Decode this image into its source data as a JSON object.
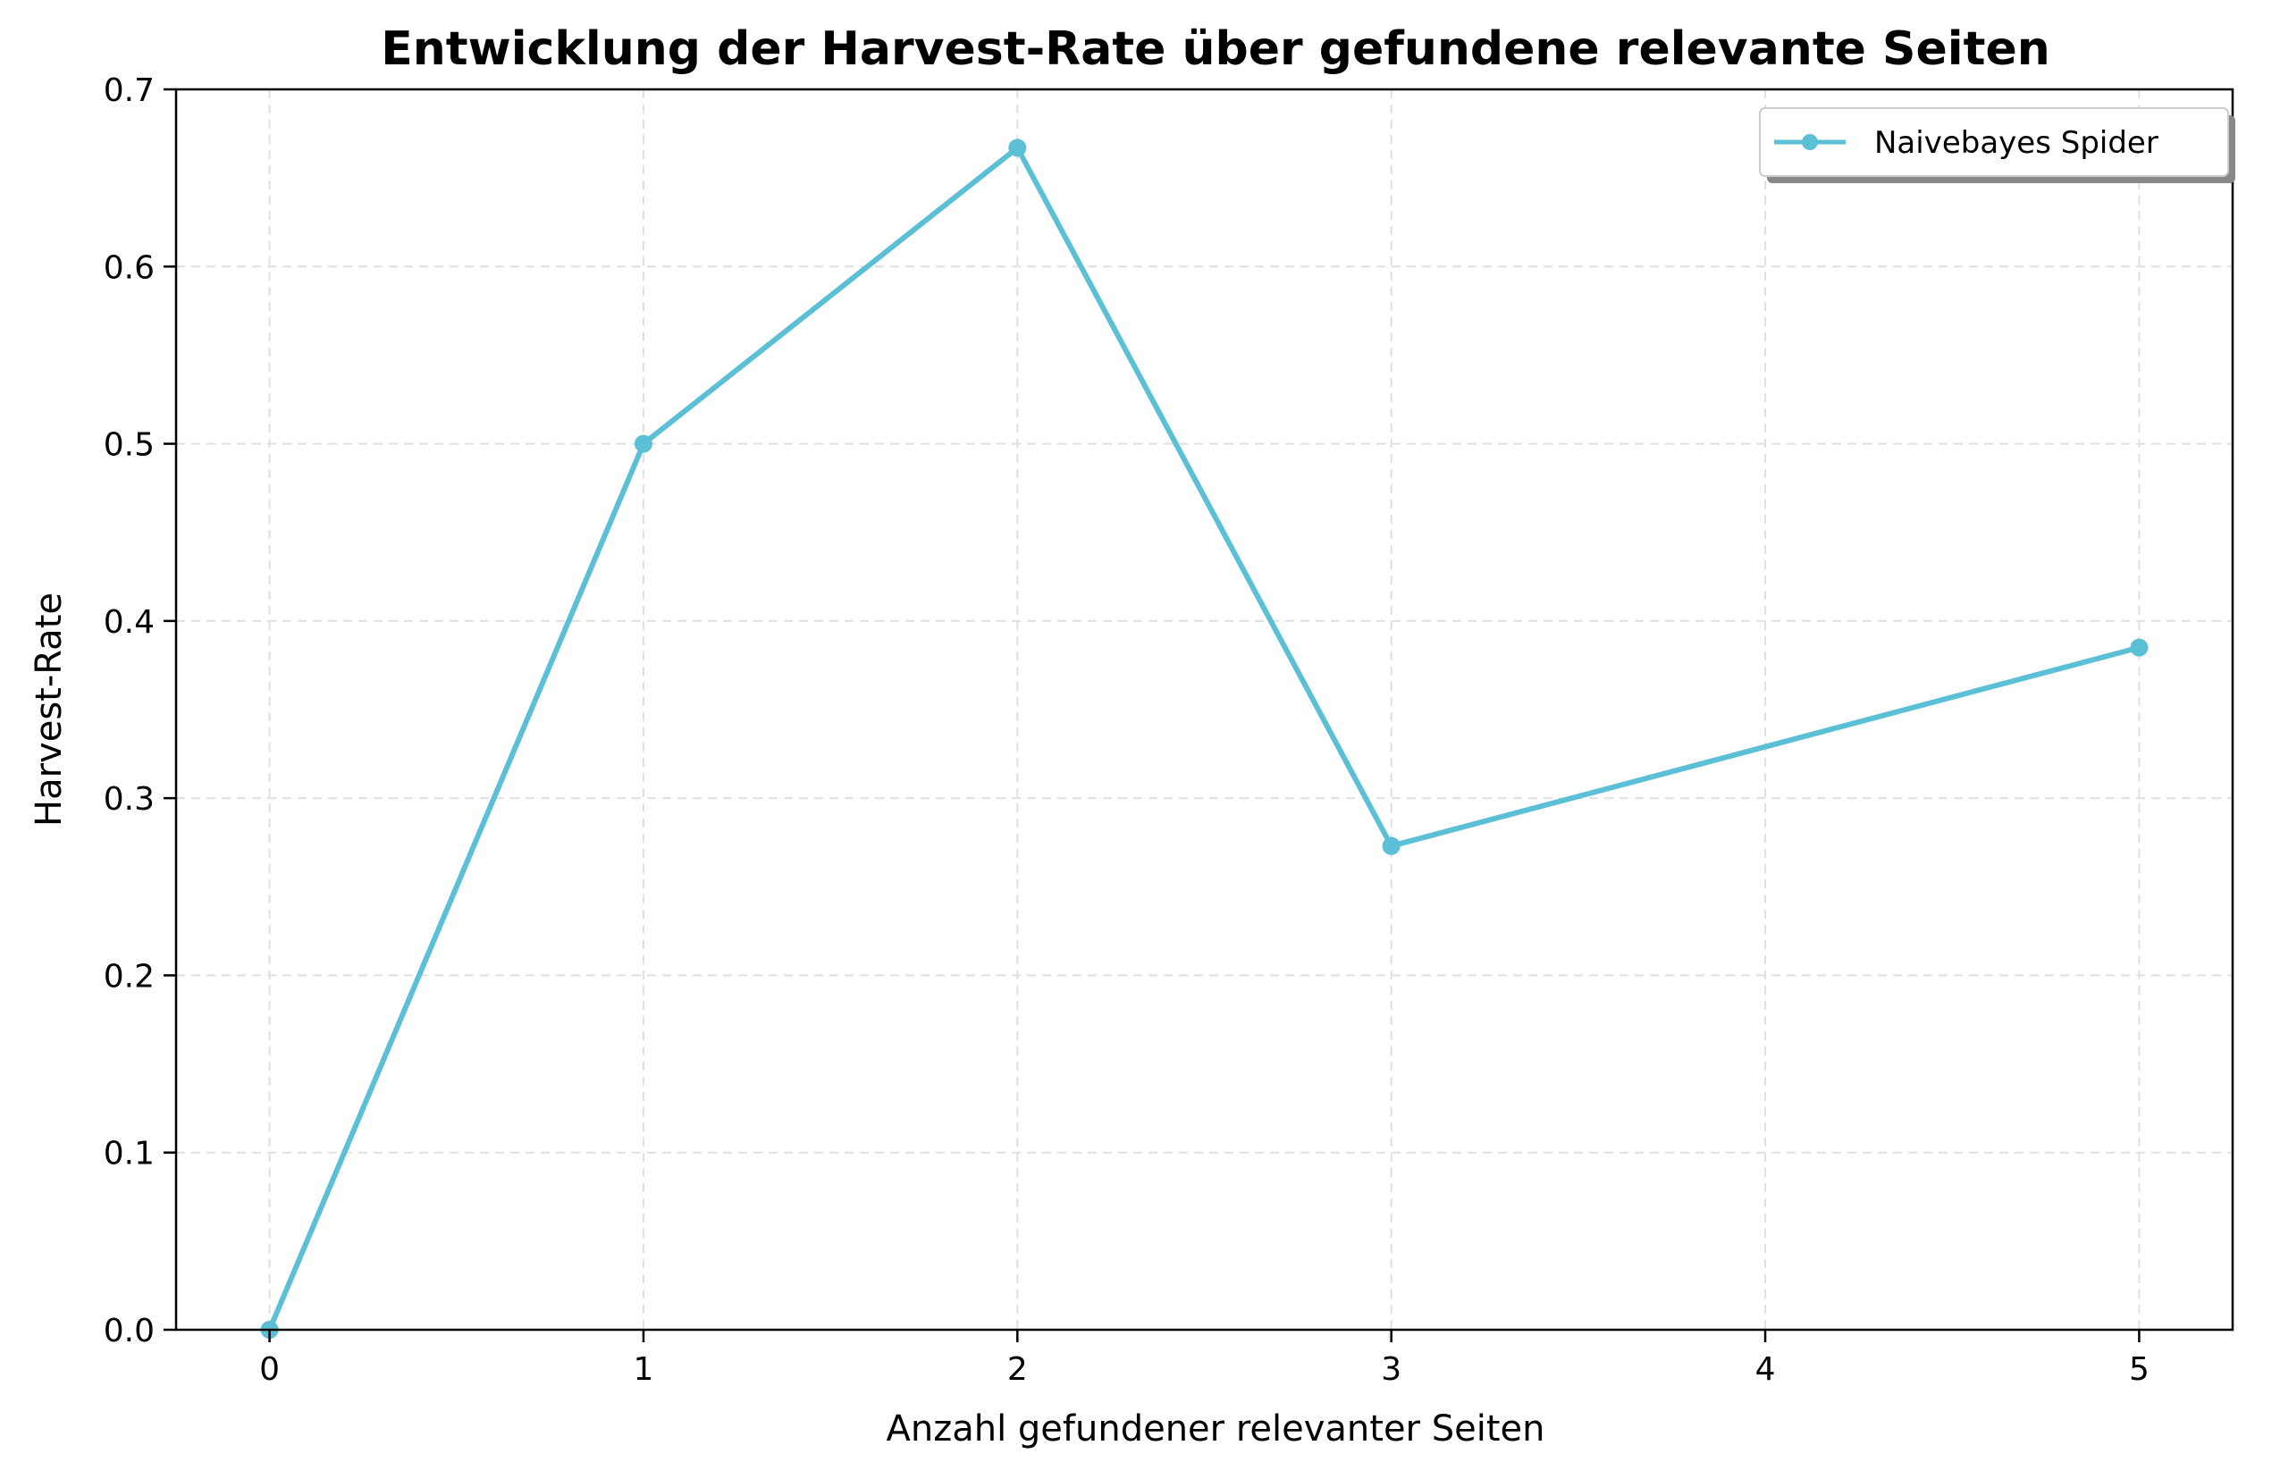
{
  "chart_data": {
    "type": "line",
    "title": "Entwicklung der Harvest-Rate über gefundene relevante Seiten",
    "xlabel": "Anzahl gefundener relevanter Seiten",
    "ylabel": "Harvest-Rate",
    "xlim": [
      -0.25,
      5.25
    ],
    "ylim": [
      0,
      0.7
    ],
    "xticks": [
      0,
      1,
      2,
      3,
      4,
      5
    ],
    "xtick_labels": [
      "0",
      "1",
      "2",
      "3",
      "4",
      "5"
    ],
    "yticks": [
      0,
      0.1,
      0.2,
      0.3,
      0.4,
      0.5,
      0.6,
      0.7
    ],
    "ytick_labels": [
      "0.0",
      "0.1",
      "0.2",
      "0.3",
      "0.4",
      "0.5",
      "0.6",
      "0.7"
    ],
    "grid": true,
    "legend_position": "top-right",
    "series": [
      {
        "name": "Naivebayes Spider",
        "color": "#5bbfd6",
        "marker": "circle",
        "x": [
          0,
          1,
          2,
          3,
          3,
          5
        ],
        "y": [
          0.0,
          0.5,
          0.667,
          0.273,
          0.273,
          0.385
        ]
      }
    ]
  }
}
